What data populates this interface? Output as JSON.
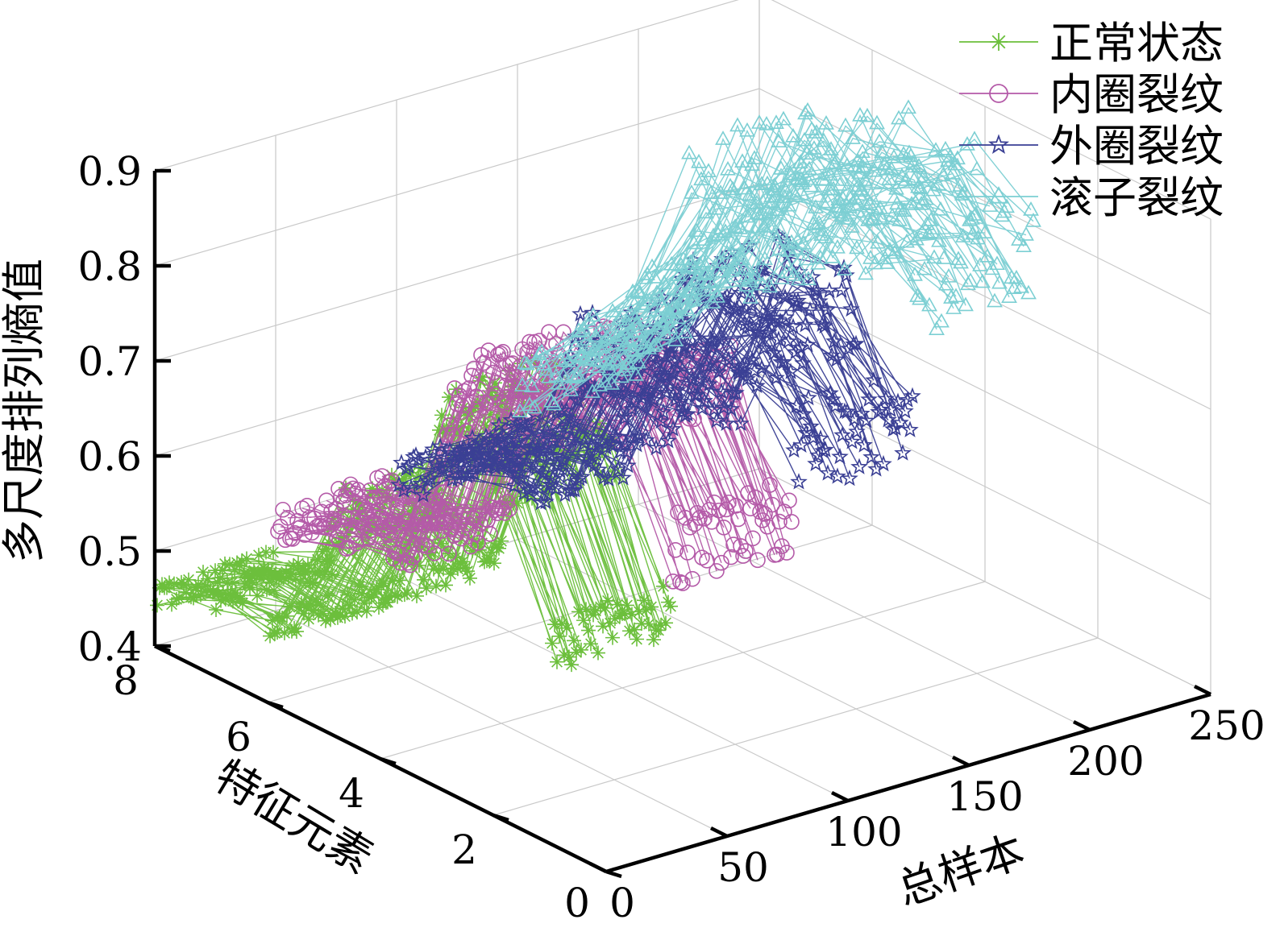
{
  "chart_data": {
    "type": "line3d",
    "zlabel": "多尺度排列熵值",
    "xlabel": "总样本",
    "ylabel": "特征元素",
    "x_ticks": [
      "0",
      "50",
      "100",
      "150",
      "200",
      "250"
    ],
    "y_ticks": [
      "0",
      "2",
      "4",
      "6",
      "8"
    ],
    "z_ticks": [
      "0.4",
      "0.5",
      "0.6",
      "0.7",
      "0.8",
      "0.9"
    ],
    "xlim": [
      0,
      250
    ],
    "ylim": [
      0,
      8
    ],
    "zlim": [
      0.4,
      0.9
    ],
    "grid": true,
    "legend_position": "top-right",
    "series": [
      {
        "name": "正常状态",
        "x_range": [
          1,
          50
        ],
        "marker": "asterisk",
        "color": "#6cbf3c",
        "levels": [
          0.61,
          0.75,
          0.79,
          0.59,
          0.62,
          0.48,
          0.48,
          0.45
        ]
      },
      {
        "name": "内圈裂纹",
        "x_range": [
          51,
          100
        ],
        "marker": "circle",
        "color": "#b45aa8",
        "levels": [
          0.67,
          0.79,
          0.8,
          0.71,
          0.71,
          0.52,
          0.51,
          0.49
        ]
      },
      {
        "name": "外圈裂纹",
        "x_range": [
          101,
          150
        ],
        "marker": "star",
        "color": "#3a3f94",
        "levels": [
          0.74,
          0.82,
          0.83,
          0.69,
          0.71,
          0.55,
          0.55,
          0.5
        ]
      },
      {
        "name": "滚子裂纹",
        "x_range": [
          151,
          200
        ],
        "marker": "triangle",
        "color": "#7ccfd3",
        "levels": [
          0.88,
          0.91,
          0.92,
          0.83,
          0.85,
          0.71,
          0.63,
          0.56
        ]
      }
    ]
  }
}
